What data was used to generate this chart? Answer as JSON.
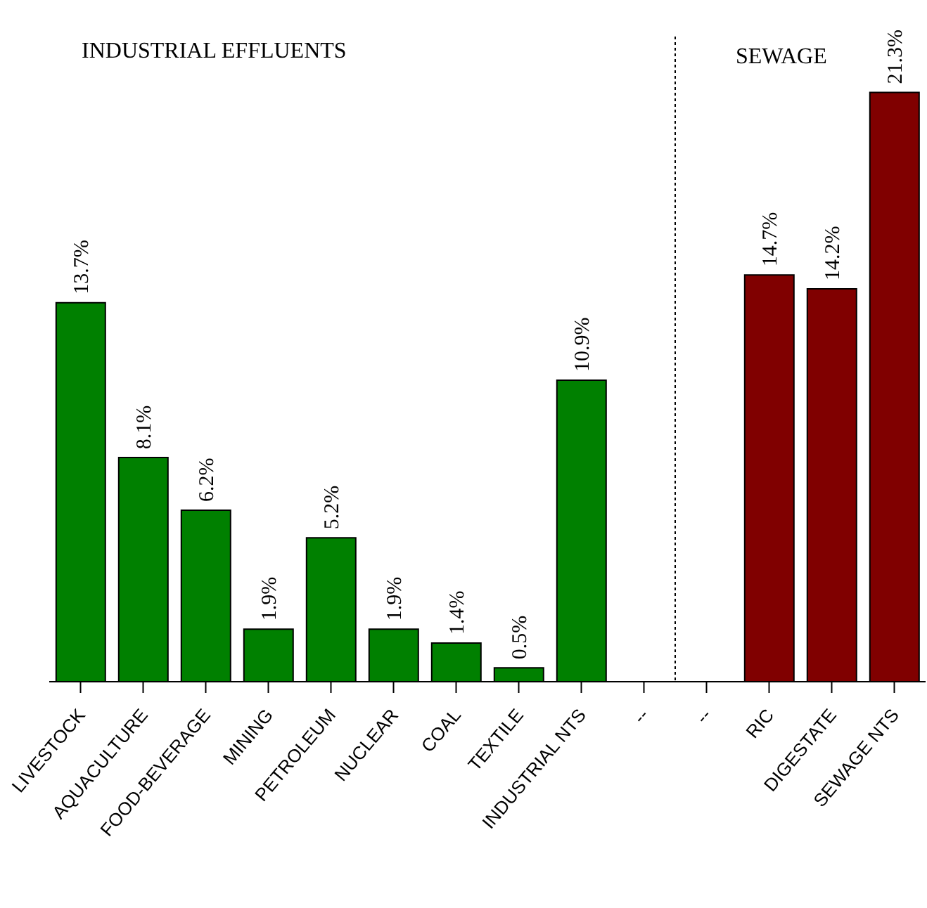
{
  "chart_data": {
    "type": "bar",
    "categories": [
      "LIVESTOCK",
      "AQUACULTURE",
      "FOOD-BEVERAGE",
      "MINING",
      "PETROLEUM",
      "NUCLEAR",
      "COAL",
      "TEXTILE",
      "INDUSTRIAL NTS",
      "--",
      "--",
      "RIC",
      "DIGESTATE",
      "SEWAGE NTS"
    ],
    "values": [
      13.7,
      8.1,
      6.2,
      1.9,
      5.2,
      1.9,
      1.4,
      0.5,
      10.9,
      null,
      null,
      14.7,
      14.2,
      21.3
    ],
    "value_labels": [
      "13.7%",
      "8.1%",
      "6.2%",
      "1.9%",
      "5.2%",
      "1.9%",
      "1.4%",
      "0.5%",
      "10.9%",
      null,
      null,
      "14.7%",
      "14.2%",
      "21.3%"
    ],
    "colors": [
      "#008000",
      "#008000",
      "#008000",
      "#008000",
      "#008000",
      "#008000",
      "#008000",
      "#008000",
      "#008000",
      "#008000",
      "#008000",
      "#800000",
      "#800000",
      "#800000"
    ],
    "annotations": [
      "INDUSTRIAL EFFLUENTS",
      "SEWAGE"
    ],
    "grid": false,
    "tick_labels": "x"
  }
}
